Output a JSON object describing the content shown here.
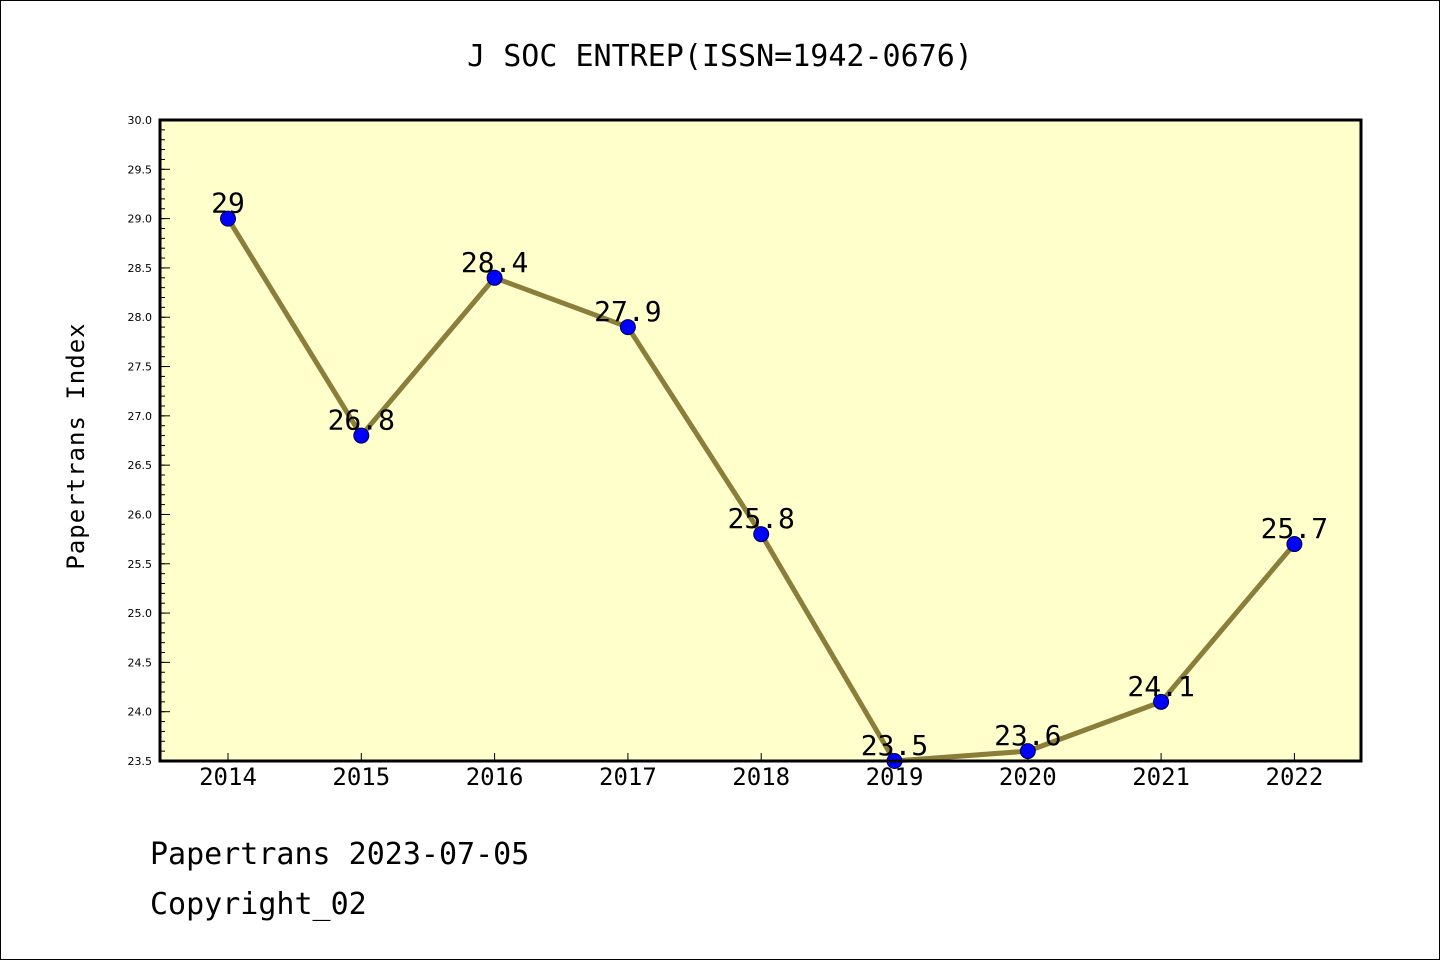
{
  "chart_data": {
    "type": "line",
    "title": "J SOC ENTREP(ISSN=1942-0676)",
    "xlabel": "",
    "ylabel": "Papertrans Index",
    "categories": [
      "2014",
      "2015",
      "2016",
      "2017",
      "2018",
      "2019",
      "2020",
      "2021",
      "2022"
    ],
    "values": [
      29,
      26.8,
      28.4,
      27.9,
      25.8,
      23.5,
      23.6,
      24.1,
      25.7
    ],
    "data_labels": [
      "29",
      "26.8",
      "28.4",
      "27.9",
      "25.8",
      "23.5",
      "23.6",
      "24.1",
      "25.7"
    ],
    "ylim": [
      23.5,
      30.0
    ],
    "yticks": [
      "23.5",
      "24.0",
      "24.5",
      "25.0",
      "25.5",
      "26.0",
      "26.5",
      "27.0",
      "27.5",
      "28.0",
      "28.5",
      "29.0",
      "29.5",
      "30.0"
    ],
    "grid": false,
    "legend": "none",
    "colors": {
      "plot_background": "#ffffcc",
      "line": "#8b7d3a",
      "marker": "#0000ff",
      "axis": "#000000"
    }
  },
  "footer": {
    "line1": "Papertrans 2023-07-05",
    "line2": "Copyright_02"
  }
}
